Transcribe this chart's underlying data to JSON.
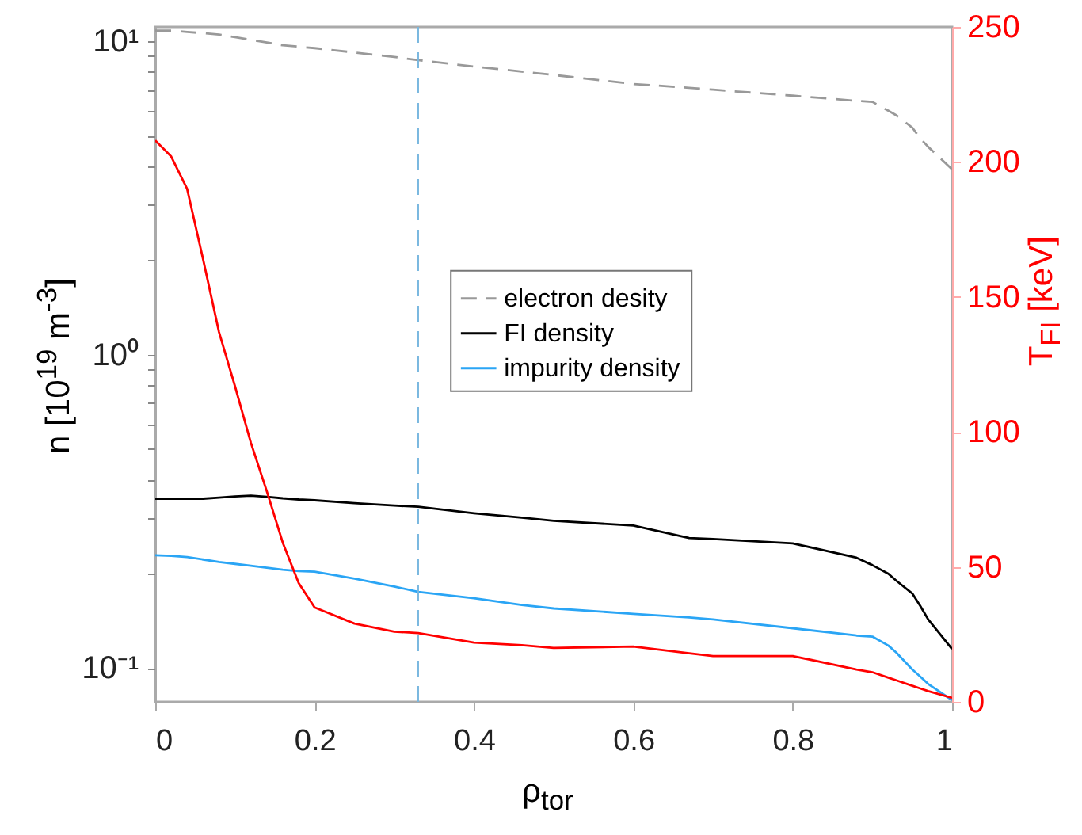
{
  "chart_data": {
    "type": "line",
    "xlabel": "ρ$_{tor}$",
    "ylabel": "n [10$^{19}$ m$^{-3}$]",
    "y2label": "T$_{FI}$ [keV]",
    "x": [
      0,
      0.02,
      0.04,
      0.06,
      0.08,
      0.1,
      0.12,
      0.14,
      0.16,
      0.18,
      0.2,
      0.25,
      0.3,
      0.33,
      0.4,
      0.46,
      0.5,
      0.6,
      0.67,
      0.7,
      0.8,
      0.88,
      0.9,
      0.92,
      0.93,
      0.95,
      0.96,
      0.97,
      1
    ],
    "series": [
      {
        "name": "electron desity",
        "color": "#999999",
        "line_style": "dashed",
        "values": [
          10.8,
          10.8,
          10.7,
          10.6,
          10.5,
          10.3,
          10.1,
          9.9,
          9.7,
          9.6,
          9.5,
          9.2,
          8.9,
          8.7,
          8.3,
          8.0,
          7.8,
          7.3,
          7.1,
          7.0,
          6.7,
          6.45,
          6.4,
          6.0,
          5.8,
          5.3,
          4.9,
          4.6,
          3.9
        ]
      },
      {
        "name": "FI density",
        "color": "#000000",
        "line_style": "solid",
        "values": [
          0.347,
          0.347,
          0.347,
          0.347,
          0.35,
          0.353,
          0.355,
          0.352,
          0.348,
          0.345,
          0.343,
          0.336,
          0.33,
          0.327,
          0.312,
          0.302,
          0.295,
          0.285,
          0.26,
          0.258,
          0.25,
          0.225,
          0.213,
          0.2,
          0.19,
          0.173,
          0.158,
          0.143,
          0.115
        ]
      },
      {
        "name": "impurity density",
        "color": "#2aa5f5",
        "line_style": "solid",
        "values": [
          0.229,
          0.228,
          0.226,
          0.222,
          0.218,
          0.215,
          0.212,
          0.209,
          0.206,
          0.204,
          0.203,
          0.193,
          0.182,
          0.175,
          0.167,
          0.159,
          0.155,
          0.149,
          0.145,
          0.143,
          0.134,
          0.127,
          0.126,
          0.118,
          0.112,
          0.099,
          0.094,
          0.089,
          0.079
        ]
      },
      {
        "color": "#ff0000",
        "axis": "y2",
        "line_style": "solid",
        "values": [
          208,
          202,
          190,
          164,
          137,
          117,
          96,
          78,
          59,
          44,
          35,
          29,
          26,
          25.5,
          22,
          21,
          20,
          20.5,
          18,
          17,
          17,
          12,
          11,
          9,
          8,
          6,
          5,
          4,
          1.5
        ]
      }
    ],
    "log": "y",
    "ylim": [
      0.078,
      11.1
    ],
    "yticks": [
      {
        "value": 0.1,
        "label": "10⁻¹"
      },
      {
        "value": 0.2,
        "label": null
      },
      {
        "value": 0.3,
        "label": null
      },
      {
        "value": 0.4,
        "label": null
      },
      {
        "value": 0.5,
        "label": null
      },
      {
        "value": 0.6,
        "label": null
      },
      {
        "value": 0.7,
        "label": null
      },
      {
        "value": 0.8,
        "label": null
      },
      {
        "value": 0.9,
        "label": null
      },
      {
        "value": 1,
        "label": "10⁰"
      },
      {
        "value": 2,
        "label": null
      },
      {
        "value": 3,
        "label": null
      },
      {
        "value": 4,
        "label": null
      },
      {
        "value": 5,
        "label": null
      },
      {
        "value": 6,
        "label": null
      },
      {
        "value": 7,
        "label": null
      },
      {
        "value": 8,
        "label": null
      },
      {
        "value": 9,
        "label": null
      },
      {
        "value": 10,
        "label": "10¹"
      }
    ],
    "y2lim": [
      0,
      250
    ],
    "y2ticks": [
      0,
      50,
      100,
      150,
      200,
      250
    ],
    "xlim": [
      0,
      1
    ],
    "xticks": [
      0,
      0.2,
      0.4,
      0.6,
      0.8,
      1
    ],
    "ref_lines": [
      {
        "axis": "x",
        "value": 0.33,
        "color": "#7ab8e0",
        "line_style": "dashed"
      }
    ],
    "legend": "center",
    "grid": false
  }
}
